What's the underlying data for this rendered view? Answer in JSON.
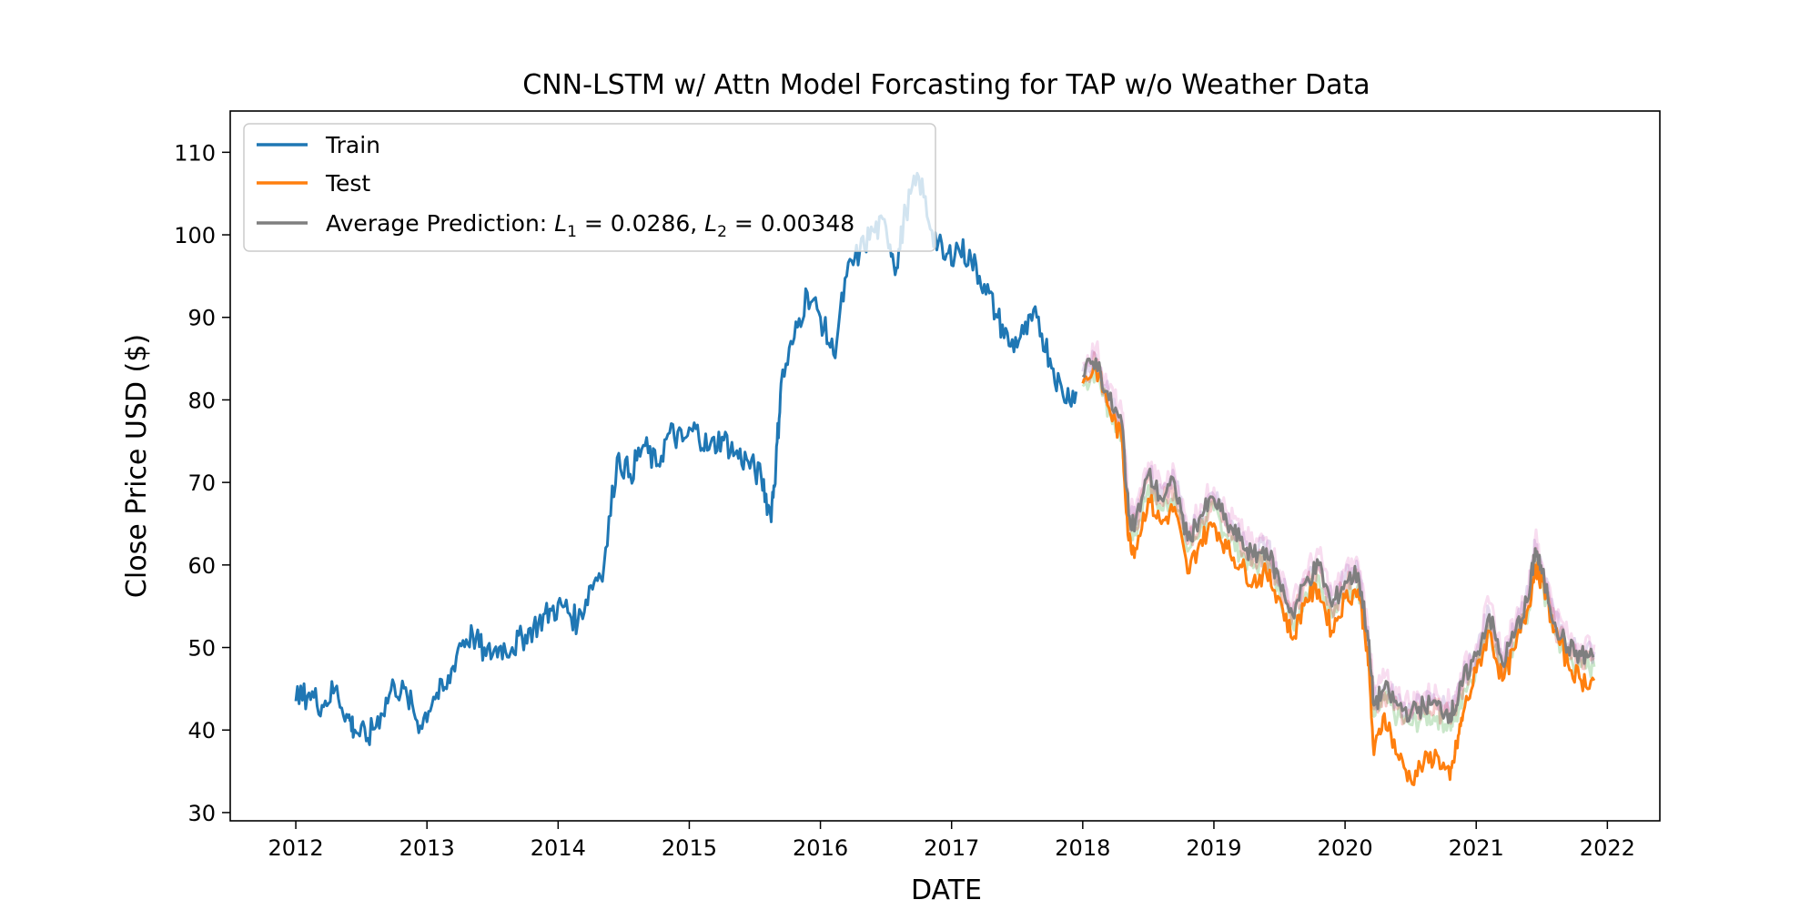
{
  "chart_data": {
    "type": "line",
    "title": "CNN-LSTM w/ Attn Model Forcasting for TAP w/o Weather Data",
    "xlabel": "DATE",
    "ylabel": "Close Price USD ($)",
    "xlim": [
      2011.5,
      2022.4
    ],
    "ylim": [
      29,
      115
    ],
    "xticks": [
      2012,
      2013,
      2014,
      2015,
      2016,
      2017,
      2018,
      2019,
      2020,
      2021,
      2022
    ],
    "xtick_labels": [
      "2012",
      "2013",
      "2014",
      "2015",
      "2016",
      "2017",
      "2018",
      "2019",
      "2020",
      "2021",
      "2022"
    ],
    "yticks": [
      30,
      40,
      50,
      60,
      70,
      80,
      90,
      100,
      110
    ],
    "ytick_labels": [
      "30",
      "40",
      "50",
      "60",
      "70",
      "80",
      "90",
      "100",
      "110"
    ],
    "grid": false,
    "legend": {
      "position": "top-left",
      "entries": [
        {
          "label": "Train",
          "color": "#1f77b4"
        },
        {
          "label": "Test",
          "color": "#ff7f0e"
        },
        {
          "label_prefix": "Average Prediction: ",
          "label_l1": "L",
          "sub1": "1",
          "val1": " = 0.0286, ",
          "label_l2": "L",
          "sub2": "2",
          "val2": " = 0.00348",
          "color": "#7f7f7f"
        }
      ]
    },
    "series": [
      {
        "name": "Train",
        "color": "#1f77b4",
        "x": [
          2012.0,
          2012.1,
          2012.2,
          2012.3,
          2012.4,
          2012.45,
          2012.55,
          2012.65,
          2012.75,
          2012.85,
          2012.95,
          2013.05,
          2013.15,
          2013.25,
          2013.35,
          2013.45,
          2013.55,
          2013.65,
          2013.75,
          2013.85,
          2013.95,
          2014.05,
          2014.15,
          2014.25,
          2014.35,
          2014.45,
          2014.55,
          2014.65,
          2014.75,
          2014.85,
          2014.95,
          2015.05,
          2015.15,
          2015.25,
          2015.35,
          2015.45,
          2015.55,
          2015.62,
          2015.66,
          2015.7,
          2015.8,
          2015.9,
          2016.0,
          2016.1,
          2016.2,
          2016.3,
          2016.4,
          2016.5,
          2016.58,
          2016.65,
          2016.75,
          2016.85,
          2016.95,
          2017.05,
          2017.15,
          2017.25,
          2017.35,
          2017.45,
          2017.55,
          2017.65,
          2017.75,
          2017.85,
          2017.95
        ],
        "y": [
          43.5,
          44.5,
          43,
          45,
          41.5,
          40,
          39,
          42,
          45.5,
          44,
          40.5,
          44,
          45,
          50.5,
          51.5,
          49,
          50,
          50,
          51.5,
          53,
          54.5,
          55,
          53,
          57.5,
          60,
          73,
          71,
          74.5,
          72,
          76,
          75,
          76.5,
          74,
          75.5,
          73.5,
          72.5,
          70.5,
          66,
          72,
          82,
          87.5,
          93,
          90,
          85.5,
          95,
          98,
          100.5,
          101,
          96,
          103,
          107,
          100.5,
          97,
          98.5,
          97,
          94,
          90,
          86.5,
          88,
          90,
          85,
          80.5,
          81
        ]
      },
      {
        "name": "Test",
        "color": "#ff7f0e",
        "x": [
          2018.0,
          2018.1,
          2018.2,
          2018.3,
          2018.35,
          2018.4,
          2018.5,
          2018.6,
          2018.7,
          2018.8,
          2018.9,
          2019.0,
          2019.1,
          2019.2,
          2019.3,
          2019.4,
          2019.5,
          2019.6,
          2019.7,
          2019.8,
          2019.9,
          2020.0,
          2020.1,
          2020.17,
          2020.22,
          2020.3,
          2020.4,
          2020.5,
          2020.6,
          2020.7,
          2020.8,
          2020.85,
          2020.9,
          2021.0,
          2021.1,
          2021.2,
          2021.3,
          2021.4,
          2021.45,
          2021.5,
          2021.6,
          2021.7,
          2021.8,
          2021.9
        ],
        "y": [
          82,
          84,
          79,
          75,
          63,
          62,
          68,
          65,
          67,
          59,
          63,
          65,
          62,
          60,
          58,
          59,
          56,
          51,
          56,
          57,
          52,
          56,
          57,
          50,
          37,
          42,
          37,
          34,
          36,
          37,
          34,
          38,
          42,
          47,
          52,
          46,
          50,
          55,
          60,
          58,
          52,
          48,
          46,
          46
        ]
      },
      {
        "name": "Average Prediction",
        "color": "#7f7f7f",
        "x": [
          2018.0,
          2018.1,
          2018.2,
          2018.3,
          2018.35,
          2018.4,
          2018.5,
          2018.6,
          2018.7,
          2018.8,
          2018.9,
          2019.0,
          2019.1,
          2019.2,
          2019.3,
          2019.4,
          2019.5,
          2019.6,
          2019.7,
          2019.8,
          2019.9,
          2020.0,
          2020.1,
          2020.17,
          2020.22,
          2020.3,
          2020.4,
          2020.5,
          2020.6,
          2020.7,
          2020.8,
          2020.85,
          2020.9,
          2021.0,
          2021.1,
          2021.2,
          2021.3,
          2021.4,
          2021.45,
          2021.5,
          2021.6,
          2021.7,
          2021.8,
          2021.9
        ],
        "y": [
          83,
          85,
          80,
          77,
          66,
          65,
          71,
          68,
          70,
          63,
          66,
          68,
          65,
          63,
          61,
          62,
          58,
          54,
          58,
          60,
          55,
          58,
          59,
          52,
          43,
          45,
          43,
          42,
          43,
          43,
          42,
          43,
          46,
          49,
          54,
          48,
          52,
          56,
          62,
          59,
          53,
          50,
          49,
          49
        ]
      }
    ],
    "ensemble_band_colors": [
      "#2ca02c",
      "#d62728",
      "#9467bd",
      "#e377c2"
    ]
  }
}
